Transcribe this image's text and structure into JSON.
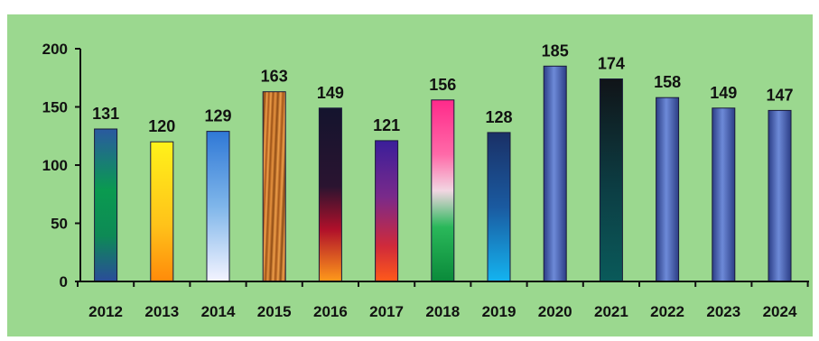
{
  "colors": {
    "panel_background": "#9bd88f",
    "axis": "#111111",
    "label_text": "#111111"
  },
  "chart_data": {
    "type": "bar",
    "title": "",
    "xlabel": "",
    "ylabel": "",
    "ylim": [
      0,
      200
    ],
    "yticks": [
      0,
      50,
      100,
      150,
      200
    ],
    "grid": false,
    "categories": [
      "2012",
      "2013",
      "2014",
      "2015",
      "2016",
      "2017",
      "2018",
      "2019",
      "2020",
      "2021",
      "2022",
      "2023",
      "2024"
    ],
    "values": [
      131,
      120,
      129,
      163,
      149,
      121,
      156,
      128,
      185,
      174,
      158,
      149,
      147
    ],
    "bar_fills": [
      "blue-green-gradient",
      "yellow-orange-gradient",
      "blue-white-gradient",
      "orange-striped",
      "black-red-orange-gradient",
      "purple-red-gradient",
      "pink-green-gradient",
      "navy-cyan-gradient",
      "blue-metallic",
      "black-teal",
      "blue-metallic",
      "blue-metallic",
      "blue-metallic"
    ]
  }
}
